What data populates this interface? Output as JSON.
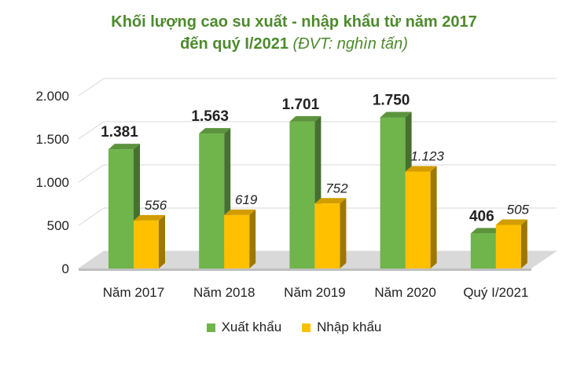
{
  "title_line1": "Khối lượng cao su xuất - nhập khẩu từ năm 2017",
  "title_line2": "đến quý I/2021",
  "title_unit": "(ĐVT: nghìn tấn)",
  "colors": {
    "export": "#70b44c",
    "import": "#ffc000",
    "title": "#4e8a2e",
    "grid": "#d9d9d9"
  },
  "chart_data": {
    "type": "bar",
    "categories": [
      "Năm 2017",
      "Năm 2018",
      "Năm 2019",
      "Năm 2020",
      "Quý I/2021"
    ],
    "series": [
      {
        "name": "Xuất khẩu",
        "values": [
          1381,
          1563,
          1701,
          1750,
          406
        ],
        "labels": [
          "1.381",
          "1.563",
          "1.701",
          "1.750",
          "406"
        ]
      },
      {
        "name": "Nhập khẩu",
        "values": [
          556,
          619,
          752,
          1123,
          505
        ],
        "labels": [
          "556",
          "619",
          "752",
          "1.123",
          "505"
        ]
      }
    ],
    "ylim": [
      0,
      2000
    ],
    "yticks": [
      0,
      500,
      1000,
      1500,
      2000
    ],
    "ytick_labels": [
      "0",
      "500",
      "1.000",
      "1.500",
      "2.000"
    ],
    "grid": true,
    "legend_position": "bottom"
  }
}
